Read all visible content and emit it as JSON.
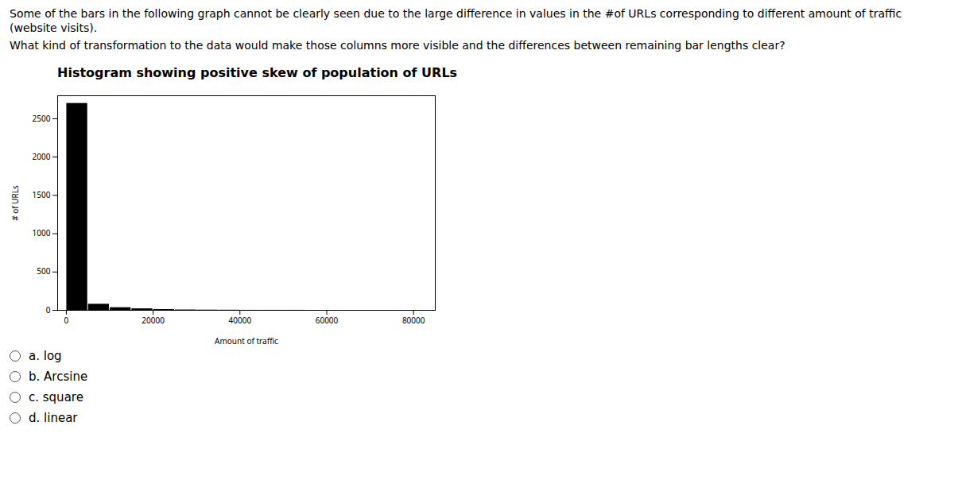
{
  "chart_data": {
    "type": "histogram",
    "title": "Histogram showing positive skew of population of URLs",
    "xlabel": "Amount of traffic",
    "ylabel": "# of URLs",
    "annotations": [
      "Some of the bars in the following graph cannot be clearly seen due to the large difference in values in the #of URLs corresponding to different amount of traffic (website visits).",
      "What kind of transformation to the data would make those columns more visible and the differences between remaining bar lengths clear?",
      "a. log",
      "b. Arcsine",
      "c. square",
      "d. linear"
    ],
    "bins": [
      0,
      5000,
      10000,
      15000,
      20000,
      25000,
      30000,
      35000,
      40000,
      45000,
      50000,
      55000,
      60000,
      65000,
      70000,
      75000,
      80000
    ],
    "values": [
      2700,
      80,
      35,
      20,
      10,
      5,
      3,
      2,
      1,
      1,
      1,
      0,
      0,
      0,
      0,
      0
    ],
    "xlim": [
      -2000,
      85000
    ],
    "ylim": [
      0,
      2800
    ],
    "xticks": [
      0,
      20000,
      40000,
      60000,
      80000
    ],
    "yticks": [
      0,
      500,
      1000,
      1500,
      2000,
      2500
    ]
  }
}
